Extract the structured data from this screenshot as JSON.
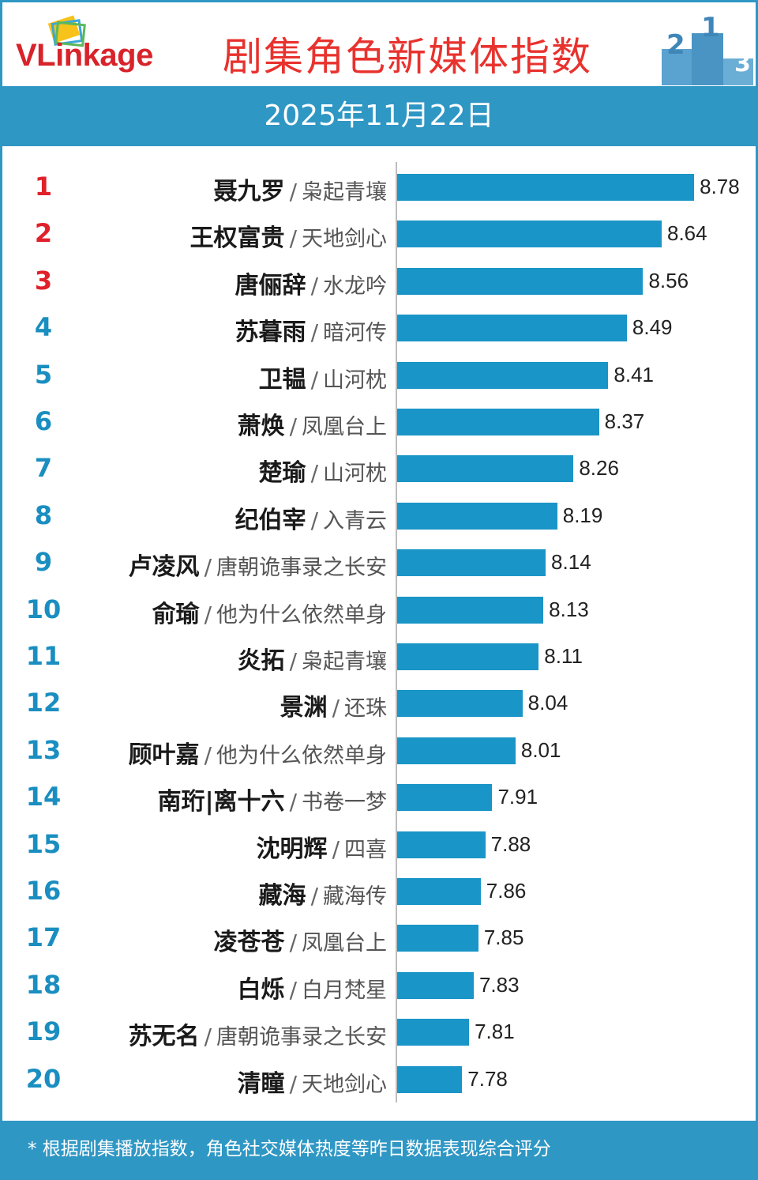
{
  "header": {
    "logo": "VLinkage",
    "title": "剧集角色新媒体指数",
    "date": "2025年11月22日",
    "podium_digits": [
      "2",
      "1",
      "3"
    ]
  },
  "chart_data": {
    "type": "bar",
    "orientation": "horizontal",
    "title": "剧集角色新媒体指数",
    "subtitle": "2025年11月22日",
    "xlim": [
      7.5,
      8.8
    ],
    "rank_colors": {
      "top3": "#e0202a",
      "rest": "#1a8ec0"
    },
    "bar_color": "#1a95c7",
    "items": [
      {
        "rank": "1",
        "character": "聂九罗",
        "drama": "枭起青壤",
        "value": 8.78,
        "value_label": "8.78"
      },
      {
        "rank": "2",
        "character": "王权富贵",
        "drama": "天地剑心",
        "value": 8.64,
        "value_label": "8.64"
      },
      {
        "rank": "3",
        "character": "唐俪辞",
        "drama": "水龙吟",
        "value": 8.56,
        "value_label": "8.56"
      },
      {
        "rank": "4",
        "character": "苏暮雨",
        "drama": "暗河传",
        "value": 8.49,
        "value_label": "8.49"
      },
      {
        "rank": "5",
        "character": "卫韫",
        "drama": "山河枕",
        "value": 8.41,
        "value_label": "8.41"
      },
      {
        "rank": "6",
        "character": "萧焕",
        "drama": "凤凰台上",
        "value": 8.37,
        "value_label": "8.37"
      },
      {
        "rank": "7",
        "character": "楚瑜",
        "drama": "山河枕",
        "value": 8.26,
        "value_label": "8.26"
      },
      {
        "rank": "8",
        "character": "纪伯宰",
        "drama": "入青云",
        "value": 8.19,
        "value_label": "8.19"
      },
      {
        "rank": "9",
        "character": "卢凌风",
        "drama": "唐朝诡事录之长安",
        "value": 8.14,
        "value_label": "8.14"
      },
      {
        "rank": "10",
        "character": "俞瑜",
        "drama": "他为什么依然单身",
        "value": 8.13,
        "value_label": "8.13"
      },
      {
        "rank": "11",
        "character": "炎拓",
        "drama": "枭起青壤",
        "value": 8.11,
        "value_label": "8.11"
      },
      {
        "rank": "12",
        "character": "景渊",
        "drama": "还珠",
        "value": 8.04,
        "value_label": "8.04"
      },
      {
        "rank": "13",
        "character": "顾叶嘉",
        "drama": "他为什么依然单身",
        "value": 8.01,
        "value_label": "8.01"
      },
      {
        "rank": "14",
        "character": "南珩|离十六",
        "drama": "书卷一梦",
        "value": 7.91,
        "value_label": "7.91"
      },
      {
        "rank": "15",
        "character": "沈明辉",
        "drama": "四喜",
        "value": 7.88,
        "value_label": "7.88"
      },
      {
        "rank": "16",
        "character": "藏海",
        "drama": "藏海传",
        "value": 7.86,
        "value_label": "7.86"
      },
      {
        "rank": "17",
        "character": "凌苍苍",
        "drama": "凤凰台上",
        "value": 7.85,
        "value_label": "7.85"
      },
      {
        "rank": "18",
        "character": "白烁",
        "drama": "白月梵星",
        "value": 7.83,
        "value_label": "7.83"
      },
      {
        "rank": "19",
        "character": "苏无名",
        "drama": "唐朝诡事录之长安",
        "value": 7.81,
        "value_label": "7.81"
      },
      {
        "rank": "20",
        "character": "清瞳",
        "drama": "天地剑心",
        "value": 7.78,
        "value_label": "7.78"
      }
    ]
  },
  "footer": {
    "note": "* 根据剧集播放指数，角色社交媒体热度等昨日数据表现综合评分"
  }
}
